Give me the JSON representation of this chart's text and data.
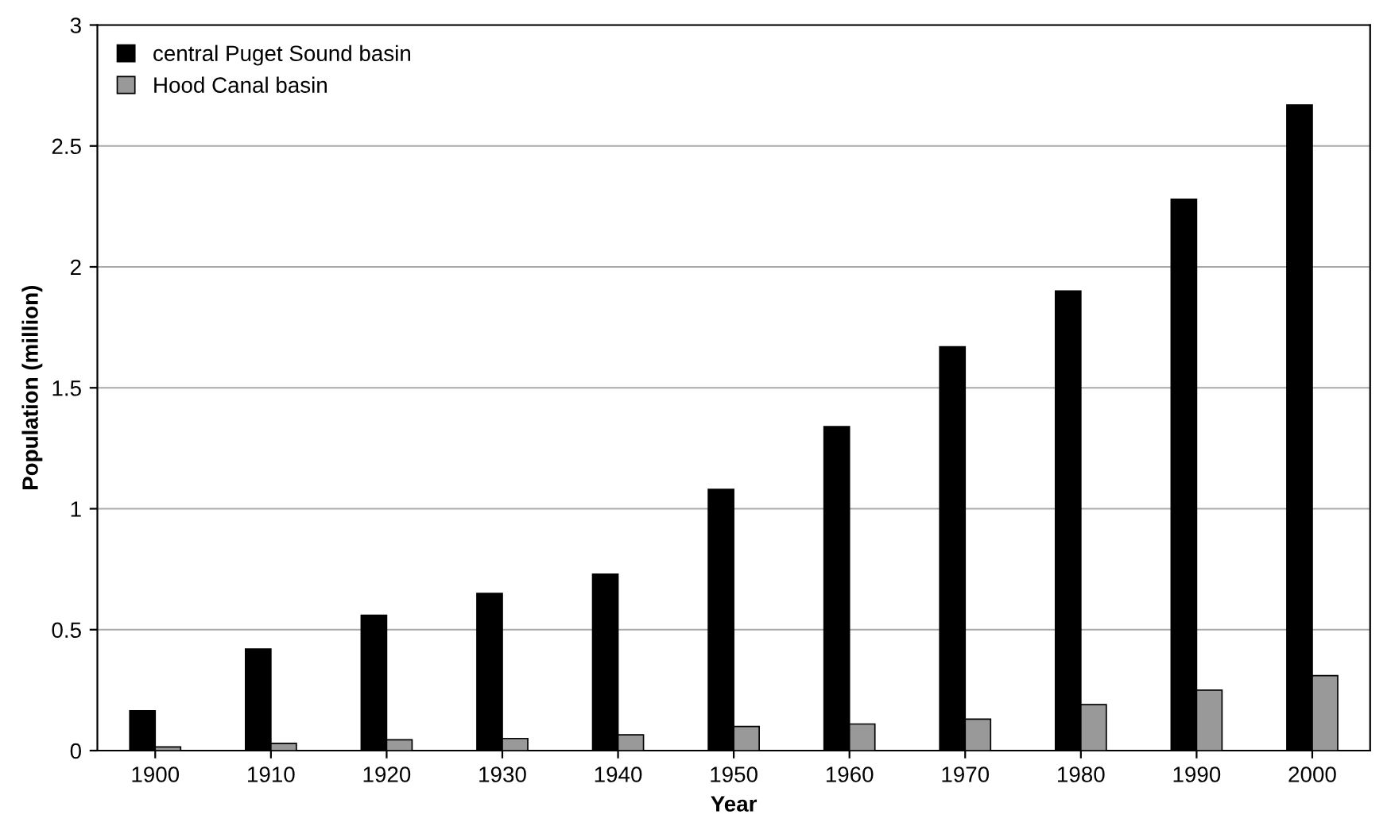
{
  "chart_data": {
    "type": "bar",
    "xlabel": "Year",
    "ylabel": "Population (million)",
    "categories": [
      "1900",
      "1910",
      "1920",
      "1930",
      "1940",
      "1950",
      "1960",
      "1970",
      "1980",
      "1990",
      "2000"
    ],
    "series": [
      {
        "name": "central Puget Sound basin",
        "color": "#000000",
        "values": [
          0.165,
          0.42,
          0.56,
          0.65,
          0.73,
          1.08,
          1.34,
          1.67,
          1.9,
          2.28,
          2.67
        ]
      },
      {
        "name": "Hood Canal basin",
        "color": "#999999",
        "values": [
          0.015,
          0.03,
          0.045,
          0.05,
          0.065,
          0.1,
          0.11,
          0.13,
          0.19,
          0.25,
          0.31
        ]
      }
    ],
    "ylim": [
      0,
      3
    ],
    "yticks": [
      0,
      0.5,
      1,
      1.5,
      2,
      2.5,
      3
    ],
    "grid": "y",
    "legend": "top left"
  }
}
